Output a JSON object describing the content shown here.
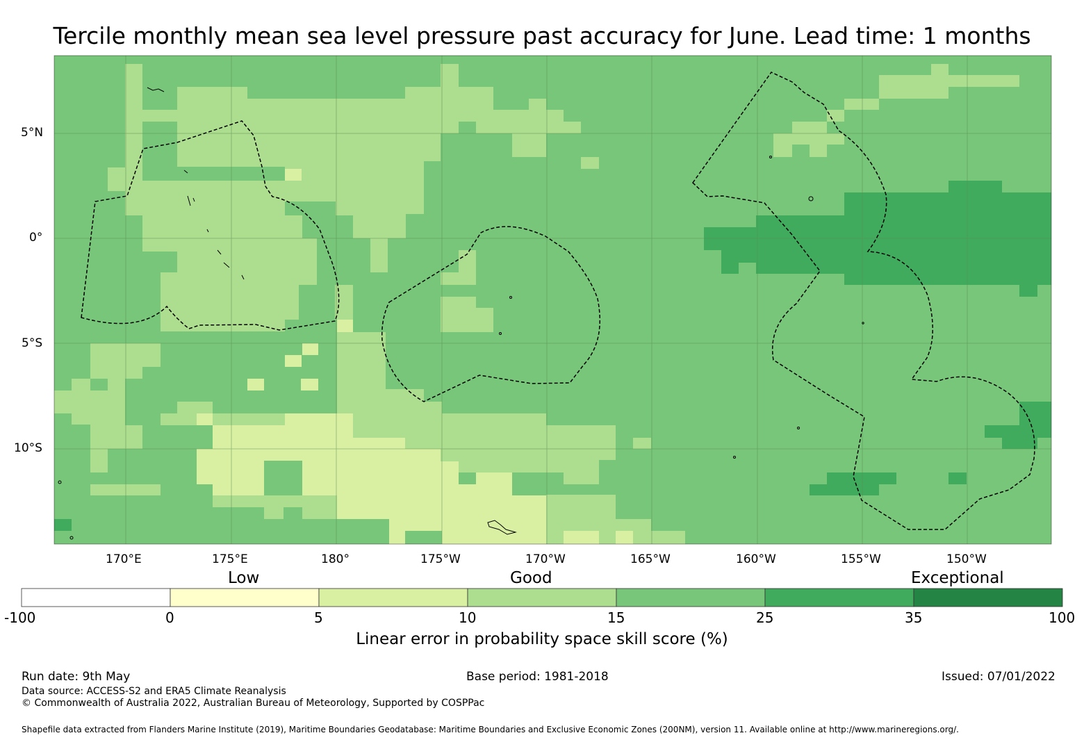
{
  "title": "Tercile monthly mean sea level pressure past accuracy for June. Lead time: 1 months",
  "map": {
    "lon_labels": [
      "170°E",
      "175°E",
      "180°",
      "175°W",
      "170°W",
      "165°W",
      "160°W",
      "155°W",
      "150°W"
    ],
    "lat_labels": [
      "5°N",
      "0°",
      "5°S",
      "10°S"
    ],
    "lon_range_deg": [
      166.6,
      213.9
    ],
    "lat_range_deg": [
      -14.7,
      8.5
    ],
    "grid_step_deg": 0.83,
    "gridlines": true
  },
  "legend": {
    "category_labels": [
      "Low",
      "Good",
      "Exceptional"
    ],
    "bin_edges": [
      "-100",
      "0",
      "5",
      "10",
      "15",
      "25",
      "35",
      "100"
    ],
    "bin_colors": [
      "#ffffff",
      "#ffffcc",
      "#d9f0a3",
      "#addd8e",
      "#78c679",
      "#41ab5d",
      "#238443"
    ],
    "title": "Linear error in probability space skill score (%)"
  },
  "footer": {
    "run_date": "Run date: 9th May",
    "base_period": "Base period: 1981-2018",
    "issued": "Issued: 07/01/2022",
    "data_source": "Data source: ACCESS-S2 and ERA5 Climate Reanalysis",
    "copyright": "© Commonwealth of Australia 2022, Australian Bureau of Meteorology, Supported by COSPPac",
    "shapefile": "Shapefile data extracted from Flanders Marine Institute (2019), Maritime Boundaries Geodatabase: Maritime Boundaries and Exclusive Economic Zones (200NM), version 11. Available online at http://www.marineregions.org/."
  }
}
